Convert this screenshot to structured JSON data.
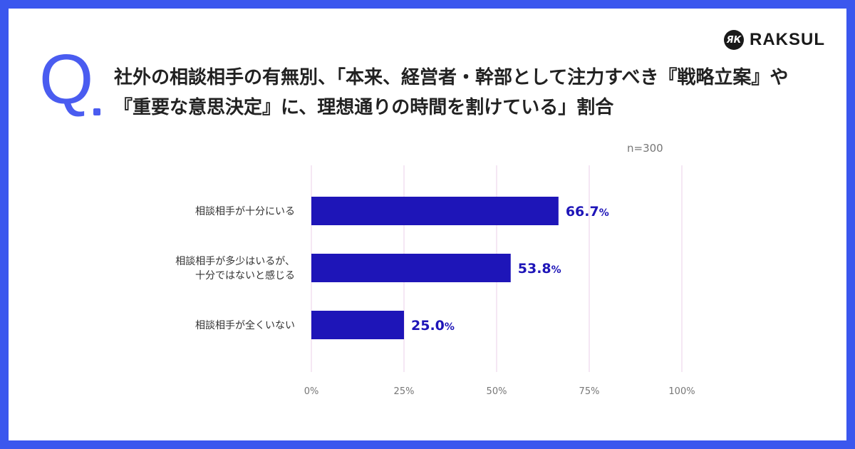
{
  "brand": {
    "logo_text": "RAKSUL",
    "logo_mark": "ЯК"
  },
  "question": {
    "prefix": "Q",
    "text": "社外の相談相手の有無別、「本来、経営者・幹部として注力すべき『戦略立案』や『重要な意思決定』に、理想通りの時間を割けている」割合"
  },
  "sample_size": "n=300",
  "colors": {
    "accent": "#4a5cf0",
    "bar": "#1e15b8",
    "frame": "#3b57ee",
    "grid": "#f2dff0"
  },
  "chart_data": {
    "type": "bar",
    "orientation": "horizontal",
    "categories": [
      [
        "相談相手が十分にいる"
      ],
      [
        "相談相手が多少はいるが、",
        "十分ではないと感じる"
      ],
      [
        "相談相手が全くいない"
      ]
    ],
    "values": [
      66.7,
      53.8,
      25.0
    ],
    "value_labels": [
      "66.7",
      "53.8",
      "25.0"
    ],
    "unit": "%",
    "xlim": [
      0,
      100
    ],
    "ticks": [
      0,
      25,
      50,
      75,
      100
    ],
    "tick_labels": [
      "0%",
      "25%",
      "50%",
      "75%",
      "100%"
    ],
    "grid": true
  }
}
